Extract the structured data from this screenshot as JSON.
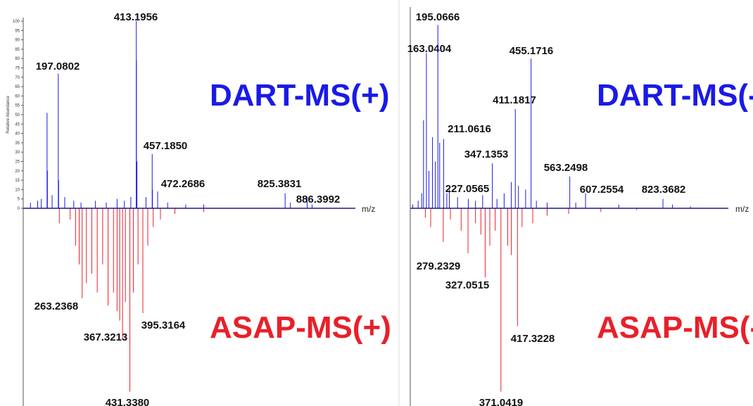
{
  "chart_data": [
    {
      "type": "mirror_spectrum",
      "x_label": "m/z",
      "y_label": "Relative Abundance",
      "xlim": [
        100,
        1020
      ],
      "ylim": [
        0,
        100
      ],
      "yticks": [
        0,
        5,
        10,
        15,
        20,
        25,
        30,
        35,
        40,
        45,
        50,
        55,
        60,
        65,
        70,
        75,
        80,
        85,
        90,
        95,
        100
      ],
      "series": [
        {
          "name": "DART-MS(+)",
          "color": "#1a1ae6",
          "x": [
            120,
            140,
            150,
            166,
            167,
            180,
            197.0802,
            198,
            215,
            240,
            260,
            300,
            330,
            360,
            380,
            398,
            413.1956,
            413.5,
            415,
            440,
            457.185,
            458,
            472.2686,
            500,
            550,
            600,
            825.3831,
            840,
            886.3992,
            900
          ],
          "values": [
            3,
            4,
            5,
            51,
            20,
            7,
            72,
            15,
            6,
            4,
            3,
            4,
            3,
            5,
            4,
            6,
            100,
            79,
            25,
            6,
            29,
            10,
            9,
            3,
            2,
            2,
            8,
            3,
            6,
            2
          ],
          "labels": [
            null,
            null,
            null,
            null,
            null,
            null,
            "197.0802",
            null,
            null,
            null,
            null,
            null,
            null,
            null,
            null,
            null,
            "413.1956",
            null,
            null,
            null,
            "457.1850",
            null,
            "472.2686",
            null,
            null,
            null,
            "825.3831",
            null,
            "886.3992",
            null
          ]
        },
        {
          "name": "ASAP-MS(+)",
          "color": "#e8202a",
          "mirror": true,
          "x": [
            200,
            230,
            245,
            255,
            263.2368,
            275,
            290,
            305,
            320,
            335,
            350,
            360,
            367.3213,
            375,
            383,
            395.3164,
            405,
            418,
            431.338,
            445,
            460,
            480,
            520,
            600
          ],
          "values": [
            8,
            6,
            20,
            30,
            48,
            40,
            35,
            45,
            30,
            52,
            45,
            55,
            60,
            70,
            50,
            98,
            45,
            30,
            56,
            20,
            10,
            6,
            3,
            2
          ],
          "labels": [
            null,
            null,
            null,
            null,
            "263.2368",
            null,
            null,
            null,
            null,
            null,
            null,
            null,
            "367.3213",
            null,
            null,
            "395.3164",
            null,
            null,
            "431.3380",
            null,
            null,
            null,
            null,
            null
          ]
        }
      ]
    },
    {
      "type": "mirror_spectrum",
      "x_label": "m/z",
      "xlim": [
        118,
        1006
      ],
      "ylim": [
        0,
        100
      ],
      "series": [
        {
          "name": "DART-MS(-)",
          "color": "#1a1ae6",
          "x": [
            125,
            140,
            150,
            155,
            163.0404,
            170,
            180,
            188,
            195.0666,
            200,
            211.0616,
            220,
            227.0565,
            250,
            280,
            300,
            320,
            347.1353,
            360,
            380,
            400,
            411.1817,
            420,
            440,
            455.1716,
            470,
            500,
            563.2498,
            580,
            607.2554,
            700,
            823.3682,
            850,
            900
          ],
          "values": [
            2,
            4,
            8,
            47,
            83,
            20,
            38,
            25,
            98,
            35,
            37,
            8,
            10,
            6,
            5,
            4,
            7,
            24,
            5,
            8,
            14,
            53,
            12,
            10,
            80,
            4,
            3,
            17,
            3,
            8,
            2,
            5,
            2,
            1
          ],
          "labels": [
            null,
            null,
            null,
            null,
            "163.0404",
            null,
            null,
            null,
            "195.0666",
            null,
            "211.0616",
            null,
            "227.0565",
            null,
            null,
            null,
            null,
            "347.1353",
            null,
            null,
            null,
            "411.1817",
            null,
            null,
            "455.1716",
            null,
            null,
            "563.2498",
            null,
            "607.2554",
            null,
            "823.3682",
            null,
            null
          ]
        },
        {
          "name": "ASAP-MS(-)",
          "color": "#e8202a",
          "mirror": true,
          "x": [
            160,
            175,
            210,
            230,
            260,
            279.2329,
            300,
            315,
            327.0515,
            340,
            355,
            371.0419,
            390,
            400,
            417.3228,
            430,
            460,
            500,
            560,
            650,
            750
          ],
          "values": [
            5,
            10,
            18,
            6,
            12,
            24,
            8,
            14,
            37,
            20,
            12,
            98,
            20,
            25,
            63,
            10,
            8,
            4,
            3,
            2,
            1
          ],
          "labels": [
            null,
            null,
            null,
            null,
            null,
            "279.2329",
            null,
            null,
            "327.0515",
            null,
            null,
            "371.0419",
            null,
            null,
            "417.3228",
            null,
            null,
            null,
            null,
            null,
            null
          ]
        }
      ]
    }
  ]
}
